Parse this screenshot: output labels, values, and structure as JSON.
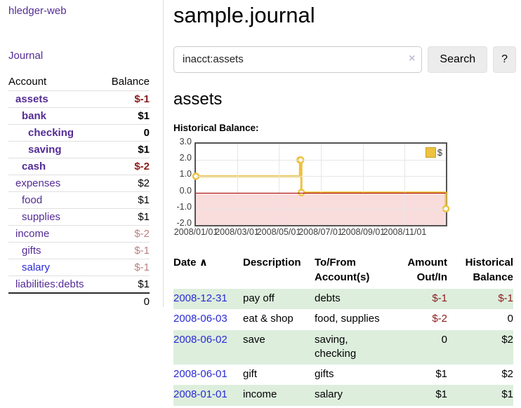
{
  "app": {
    "brand": "hledger-web"
  },
  "sidebar": {
    "journal_link": "Journal",
    "accounts": {
      "header_account": "Account",
      "header_balance": "Balance",
      "rows": [
        {
          "name": "assets",
          "balance": "$-1"
        },
        {
          "name": "bank",
          "balance": "$1"
        },
        {
          "name": "checking",
          "balance": "0"
        },
        {
          "name": "saving",
          "balance": "$1"
        },
        {
          "name": "cash",
          "balance": "$-2"
        },
        {
          "name": "expenses",
          "balance": "$2"
        },
        {
          "name": "food",
          "balance": "$1"
        },
        {
          "name": "supplies",
          "balance": "$1"
        },
        {
          "name": "income",
          "balance": "$-2"
        },
        {
          "name": "gifts",
          "balance": "$-1"
        },
        {
          "name": "salary",
          "balance": "$-1"
        },
        {
          "name": "liabilities:debts",
          "balance": "$1"
        }
      ],
      "total": "0"
    }
  },
  "main": {
    "title": "sample.journal",
    "search": {
      "value": "inacct:assets",
      "clear_icon": "×",
      "search_button": "Search",
      "help_button": "?"
    },
    "account_heading": "assets",
    "section_label": "Historical Balance:",
    "register": {
      "headers": {
        "date": "Date",
        "sort_icon": "∧",
        "description": "Description",
        "tofrom": "To/From Account(s)",
        "amount": "Amount Out/In",
        "balance": "Historical Balance"
      },
      "rows": [
        {
          "date": "2008-12-31",
          "description": "pay off",
          "tofrom": "debts",
          "amount": "$-1",
          "balance": "$-1"
        },
        {
          "date": "2008-06-03",
          "description": "eat & shop",
          "tofrom": "food, supplies",
          "amount": "$-2",
          "balance": "0"
        },
        {
          "date": "2008-06-02",
          "description": "save",
          "tofrom": "saving, checking",
          "amount": "0",
          "balance": "$2"
        },
        {
          "date": "2008-06-01",
          "description": "gift",
          "tofrom": "gifts",
          "amount": "$1",
          "balance": "$2"
        },
        {
          "date": "2008-01-01",
          "description": "income",
          "tofrom": "salary",
          "amount": "$1",
          "balance": "$1"
        }
      ]
    }
  },
  "colors": {
    "accent_gold": "#edc240",
    "gold_border": "#c9a22c",
    "negative": "#8b1c1c",
    "negative_muted": "#bd8080",
    "link_purple": "#542c96",
    "link_blue": "#2a2ad6",
    "row_green": "#ddeedd",
    "negative_region": "#f9dcdc",
    "zero_line": "#a60000"
  },
  "chart_data": {
    "type": "line",
    "step": true,
    "title": "Historical Balance:",
    "xlabel": "",
    "ylabel": "",
    "ylim": [
      -2,
      3
    ],
    "ytick_labels": [
      "3.0",
      "2.0",
      "1.0",
      "0.0",
      "-1.0",
      "-2.0"
    ],
    "xtick_labels": [
      "2008/01/01",
      "2008/03/01",
      "2008/05/01",
      "2008/07/01",
      "2008/09/01",
      "2008/11/01"
    ],
    "xtick_days": [
      0,
      60,
      121,
      182,
      244,
      305
    ],
    "x_total_days": 365,
    "grid": true,
    "legend_position": "top-right",
    "series": [
      {
        "name": "$",
        "color": "#edc240",
        "points_day_value": [
          [
            0,
            1
          ],
          [
            152,
            2
          ],
          [
            153,
            2
          ],
          [
            154,
            0
          ],
          [
            365,
            -1
          ]
        ]
      }
    ],
    "negative_region": {
      "from": -2,
      "to": 0,
      "color": "#f9dcdc",
      "zero_line_color": "#a60000"
    }
  }
}
